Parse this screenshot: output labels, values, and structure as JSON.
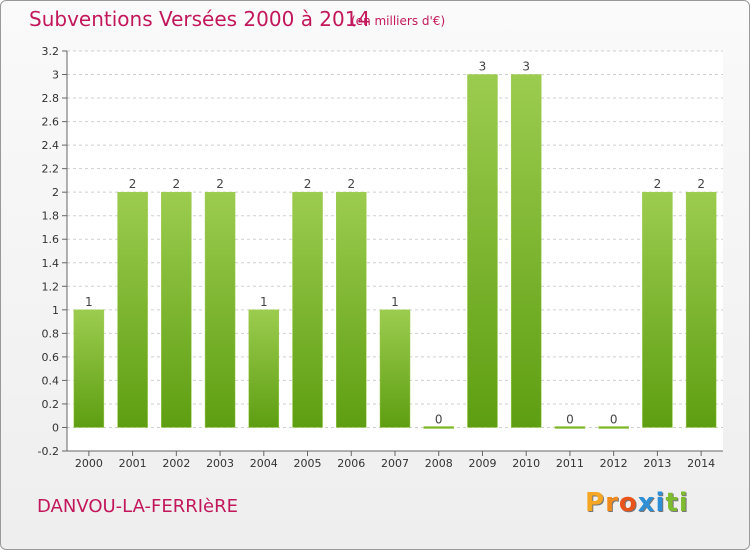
{
  "header": {
    "title": "Subventions Versées 2000 à 2014",
    "subtitle": "(en milliers d'€)"
  },
  "footer": {
    "commune": "DANVOU-LA-FERRIèRE",
    "logo_letters": [
      "P",
      "r",
      "o",
      "x",
      "i",
      "t",
      "i"
    ]
  },
  "colors": {
    "title": "#c2185b",
    "bar_light": "#9ccc4f",
    "bar_dark": "#5e9e12",
    "logo": [
      "#f5a623",
      "#f08a1c",
      "#e8541a",
      "#2d8fd6",
      "#2d8fd6",
      "#7dbb2f",
      "#7dbb2f"
    ]
  },
  "chart_data": {
    "type": "bar",
    "categories": [
      "2000",
      "2001",
      "2002",
      "2003",
      "2004",
      "2005",
      "2006",
      "2007",
      "2008",
      "2009",
      "2010",
      "2011",
      "2012",
      "2013",
      "2014"
    ],
    "values": [
      1,
      2,
      2,
      2,
      1,
      2,
      2,
      1,
      0,
      3,
      3,
      0,
      0,
      2,
      2
    ],
    "value_labels": [
      "1",
      "2",
      "2",
      "2",
      "1",
      "2",
      "2",
      "1",
      "0",
      "3",
      "3",
      "0",
      "0",
      "2",
      "2"
    ],
    "yticks": [
      "3.2",
      "3",
      "2.8",
      "2.6",
      "2.4",
      "2.2",
      "2",
      "1.8",
      "1.6",
      "1.4",
      "1.2",
      "1",
      "0.8",
      "0.6",
      "0.4",
      "0.2",
      "0",
      "-0.2"
    ],
    "ylim": [
      -0.2,
      3.2
    ],
    "grid": true,
    "title": "Subventions Versées 2000 à 2014",
    "xlabel": "",
    "ylabel": ""
  }
}
